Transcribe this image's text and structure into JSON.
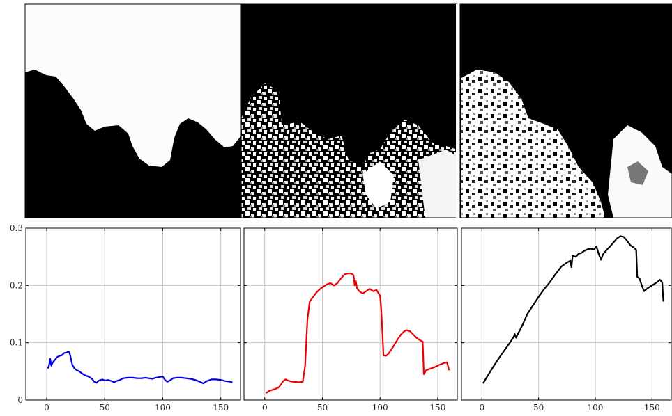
{
  "images": [
    {
      "name": "probability-map-1"
    },
    {
      "name": "probability-map-2"
    },
    {
      "name": "probability-map-3"
    }
  ],
  "chart_data": [
    {
      "type": "line",
      "title": "",
      "xlabel": "",
      "ylabel": "",
      "xlim": [
        -18,
        167
      ],
      "ylim": [
        0,
        0.3
      ],
      "x_ticks": [
        "0",
        "50",
        "100",
        "150"
      ],
      "y_ticks": [
        "0",
        "0.1",
        "0.2",
        "0.3"
      ],
      "grid": true,
      "series": [
        {
          "color": "#0000e0",
          "points": [
            [
              1,
              0.055
            ],
            [
              2,
              0.06
            ],
            [
              3,
              0.072
            ],
            [
              4,
              0.06
            ],
            [
              5,
              0.065
            ],
            [
              7,
              0.07
            ],
            [
              9,
              0.075
            ],
            [
              11,
              0.077
            ],
            [
              13,
              0.078
            ],
            [
              15,
              0.082
            ],
            [
              17,
              0.083
            ],
            [
              19,
              0.085
            ],
            [
              20,
              0.08
            ],
            [
              22,
              0.062
            ],
            [
              24,
              0.055
            ],
            [
              26,
              0.052
            ],
            [
              28,
              0.05
            ],
            [
              30,
              0.047
            ],
            [
              33,
              0.043
            ],
            [
              36,
              0.041
            ],
            [
              39,
              0.037
            ],
            [
              41,
              0.032
            ],
            [
              43,
              0.03
            ],
            [
              45,
              0.034
            ],
            [
              48,
              0.036
            ],
            [
              50,
              0.034
            ],
            [
              53,
              0.035
            ],
            [
              56,
              0.033
            ],
            [
              58,
              0.031
            ],
            [
              60,
              0.033
            ],
            [
              63,
              0.035
            ],
            [
              66,
              0.038
            ],
            [
              70,
              0.039
            ],
            [
              74,
              0.039
            ],
            [
              78,
              0.038
            ],
            [
              82,
              0.038
            ],
            [
              85,
              0.039
            ],
            [
              88,
              0.038
            ],
            [
              91,
              0.037
            ],
            [
              94,
              0.039
            ],
            [
              97,
              0.04
            ],
            [
              100,
              0.041
            ],
            [
              102,
              0.035
            ],
            [
              104,
              0.032
            ],
            [
              106,
              0.034
            ],
            [
              109,
              0.038
            ],
            [
              112,
              0.039
            ],
            [
              116,
              0.039
            ],
            [
              120,
              0.038
            ],
            [
              124,
              0.037
            ],
            [
              128,
              0.035
            ],
            [
              132,
              0.032
            ],
            [
              135,
              0.029
            ],
            [
              138,
              0.033
            ],
            [
              142,
              0.036
            ],
            [
              146,
              0.036
            ],
            [
              150,
              0.035
            ],
            [
              154,
              0.033
            ],
            [
              158,
              0.032
            ],
            [
              160,
              0.031
            ]
          ]
        }
      ]
    },
    {
      "type": "line",
      "title": "",
      "xlabel": "",
      "ylabel": "",
      "xlim": [
        -18,
        167
      ],
      "ylim": [
        0,
        0.3
      ],
      "x_ticks": [
        "0",
        "50",
        "100",
        "150"
      ],
      "y_ticks": [
        "0",
        "0.1",
        "0.2",
        "0.3"
      ],
      "grid": true,
      "series": [
        {
          "color": "#ee0000",
          "points": [
            [
              1,
              0.012
            ],
            [
              4,
              0.016
            ],
            [
              7,
              0.018
            ],
            [
              10,
              0.02
            ],
            [
              12,
              0.022
            ],
            [
              14,
              0.027
            ],
            [
              16,
              0.033
            ],
            [
              18,
              0.036
            ],
            [
              20,
              0.034
            ],
            [
              24,
              0.032
            ],
            [
              30,
              0.031
            ],
            [
              33,
              0.032
            ],
            [
              35,
              0.06
            ],
            [
              37,
              0.14
            ],
            [
              39,
              0.172
            ],
            [
              42,
              0.18
            ],
            [
              45,
              0.188
            ],
            [
              48,
              0.194
            ],
            [
              51,
              0.198
            ],
            [
              54,
              0.202
            ],
            [
              57,
              0.204
            ],
            [
              60,
              0.2
            ],
            [
              63,
              0.204
            ],
            [
              66,
              0.212
            ],
            [
              69,
              0.219
            ],
            [
              72,
              0.221
            ],
            [
              75,
              0.221
            ],
            [
              77,
              0.218
            ],
            [
              78,
              0.2
            ],
            [
              79,
              0.208
            ],
            [
              80,
              0.195
            ],
            [
              82,
              0.19
            ],
            [
              85,
              0.186
            ],
            [
              88,
              0.19
            ],
            [
              91,
              0.194
            ],
            [
              94,
              0.19
            ],
            [
              97,
              0.192
            ],
            [
              100,
              0.182
            ],
            [
              101,
              0.16
            ],
            [
              102,
              0.12
            ],
            [
              103,
              0.078
            ],
            [
              105,
              0.077
            ],
            [
              107,
              0.08
            ],
            [
              109,
              0.086
            ],
            [
              112,
              0.095
            ],
            [
              115,
              0.105
            ],
            [
              118,
              0.114
            ],
            [
              121,
              0.12
            ],
            [
              123,
              0.122
            ],
            [
              126,
              0.12
            ],
            [
              129,
              0.114
            ],
            [
              132,
              0.108
            ],
            [
              135,
              0.104
            ],
            [
              137,
              0.102
            ],
            [
              138,
              0.045
            ],
            [
              140,
              0.052
            ],
            [
              144,
              0.055
            ],
            [
              148,
              0.058
            ],
            [
              152,
              0.062
            ],
            [
              156,
              0.065
            ],
            [
              158,
              0.066
            ],
            [
              160,
              0.052
            ]
          ]
        }
      ]
    },
    {
      "type": "line",
      "title": "",
      "xlabel": "",
      "ylabel": "",
      "xlim": [
        -18,
        167
      ],
      "ylim": [
        0,
        0.3
      ],
      "x_ticks": [
        "0",
        "50",
        "100",
        "150"
      ],
      "y_ticks": [
        "0",
        "0.1",
        "0.2",
        "0.3"
      ],
      "grid": true,
      "series": [
        {
          "color": "#000000",
          "points": [
            [
              1,
              0.029
            ],
            [
              5,
              0.042
            ],
            [
              10,
              0.058
            ],
            [
              15,
              0.073
            ],
            [
              20,
              0.087
            ],
            [
              25,
              0.101
            ],
            [
              28,
              0.11
            ],
            [
              29,
              0.115
            ],
            [
              30,
              0.109
            ],
            [
              33,
              0.12
            ],
            [
              36,
              0.132
            ],
            [
              40,
              0.15
            ],
            [
              45,
              0.165
            ],
            [
              50,
              0.18
            ],
            [
              55,
              0.194
            ],
            [
              60,
              0.206
            ],
            [
              65,
              0.22
            ],
            [
              70,
              0.233
            ],
            [
              75,
              0.24
            ],
            [
              78,
              0.243
            ],
            [
              79,
              0.232
            ],
            [
              80,
              0.252
            ],
            [
              83,
              0.25
            ],
            [
              85,
              0.255
            ],
            [
              88,
              0.257
            ],
            [
              90,
              0.26
            ],
            [
              93,
              0.263
            ],
            [
              96,
              0.264
            ],
            [
              99,
              0.263
            ],
            [
              101,
              0.268
            ],
            [
              103,
              0.255
            ],
            [
              105,
              0.245
            ],
            [
              107,
              0.255
            ],
            [
              110,
              0.262
            ],
            [
              113,
              0.268
            ],
            [
              116,
              0.275
            ],
            [
              119,
              0.282
            ],
            [
              122,
              0.286
            ],
            [
              125,
              0.285
            ],
            [
              128,
              0.278
            ],
            [
              131,
              0.27
            ],
            [
              134,
              0.266
            ],
            [
              136,
              0.262
            ],
            [
              137,
              0.215
            ],
            [
              139,
              0.212
            ],
            [
              141,
              0.2
            ],
            [
              143,
              0.19
            ],
            [
              146,
              0.195
            ],
            [
              150,
              0.2
            ],
            [
              154,
              0.205
            ],
            [
              157,
              0.21
            ],
            [
              159,
              0.205
            ],
            [
              160,
              0.172
            ]
          ]
        }
      ]
    }
  ]
}
